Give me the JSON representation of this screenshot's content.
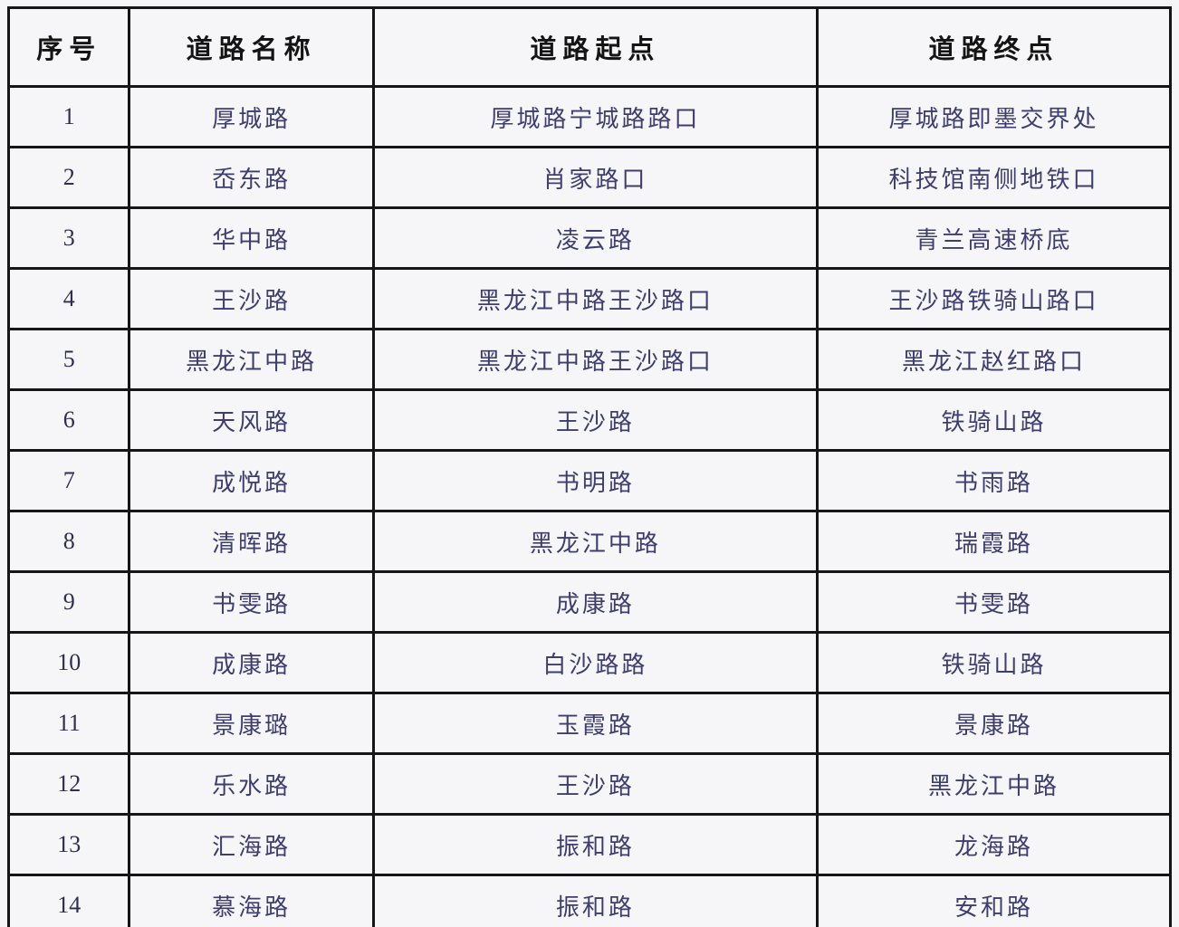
{
  "colors": {
    "border": "#161616",
    "header_text": "#141414",
    "body_text": "#3d3d6e",
    "cell_background": "#f6f6f8",
    "page_background": "#f5f5f7"
  },
  "table": {
    "headers": {
      "no": "序号",
      "name": "道路名称",
      "start": "道路起点",
      "end": "道路终点"
    },
    "rows": [
      {
        "no": "1",
        "name": "厚城路",
        "start": "厚城路宁城路路口",
        "end": "厚城路即墨交界处"
      },
      {
        "no": "2",
        "name": "岙东路",
        "start": "肖家路口",
        "end": "科技馆南侧地铁口"
      },
      {
        "no": "3",
        "name": "华中路",
        "start": "凌云路",
        "end": "青兰高速桥底"
      },
      {
        "no": "4",
        "name": "王沙路",
        "start": "黑龙江中路王沙路口",
        "end": "王沙路铁骑山路口"
      },
      {
        "no": "5",
        "name": "黑龙江中路",
        "start": "黑龙江中路王沙路口",
        "end": "黑龙江赵红路口"
      },
      {
        "no": "6",
        "name": "天风路",
        "start": "王沙路",
        "end": "铁骑山路"
      },
      {
        "no": "7",
        "name": "成悦路",
        "start": "书明路",
        "end": "书雨路"
      },
      {
        "no": "8",
        "name": "清晖路",
        "start": "黑龙江中路",
        "end": "瑞霞路"
      },
      {
        "no": "9",
        "name": "书雯路",
        "start": "成康路",
        "end": "书雯路"
      },
      {
        "no": "10",
        "name": "成康路",
        "start": "白沙路路",
        "end": "铁骑山路"
      },
      {
        "no": "11",
        "name": "景康璐",
        "start": "玉霞路",
        "end": "景康路"
      },
      {
        "no": "12",
        "name": "乐水路",
        "start": "王沙路",
        "end": "黑龙江中路"
      },
      {
        "no": "13",
        "name": "汇海路",
        "start": "振和路",
        "end": "龙海路"
      },
      {
        "no": "14",
        "name": "慕海路",
        "start": "振和路",
        "end": "安和路"
      }
    ]
  }
}
